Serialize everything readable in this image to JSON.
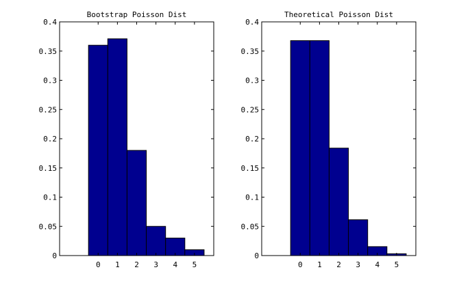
{
  "chart_data": [
    {
      "type": "bar",
      "title": "Bootstrap Poisson Dist",
      "xlabel": "",
      "ylabel": "",
      "categories": [
        "0",
        "1",
        "2",
        "3",
        "4",
        "5"
      ],
      "x": [
        0,
        1,
        2,
        3,
        4,
        5
      ],
      "values": [
        0.36,
        0.371,
        0.18,
        0.05,
        0.03,
        0.01
      ],
      "xlim": [
        -2,
        6
      ],
      "ylim": [
        0,
        0.4
      ],
      "yticks": [
        "0",
        "0.05",
        "0.1",
        "0.15",
        "0.2",
        "0.25",
        "0.3",
        "0.35",
        "0.4"
      ],
      "grid": false,
      "bar_color": "#00008f"
    },
    {
      "type": "bar",
      "title": "Theoretical Poisson Dist",
      "xlabel": "",
      "ylabel": "",
      "categories": [
        "0",
        "1",
        "2",
        "3",
        "4",
        "5"
      ],
      "x": [
        0,
        1,
        2,
        3,
        4,
        5
      ],
      "values": [
        0.3679,
        0.3679,
        0.1839,
        0.0613,
        0.0153,
        0.0031
      ],
      "xlim": [
        -2,
        6
      ],
      "ylim": [
        0,
        0.4
      ],
      "yticks": [
        "0",
        "0.05",
        "0.1",
        "0.15",
        "0.2",
        "0.25",
        "0.3",
        "0.35",
        "0.4"
      ],
      "grid": false,
      "bar_color": "#00008f"
    }
  ]
}
